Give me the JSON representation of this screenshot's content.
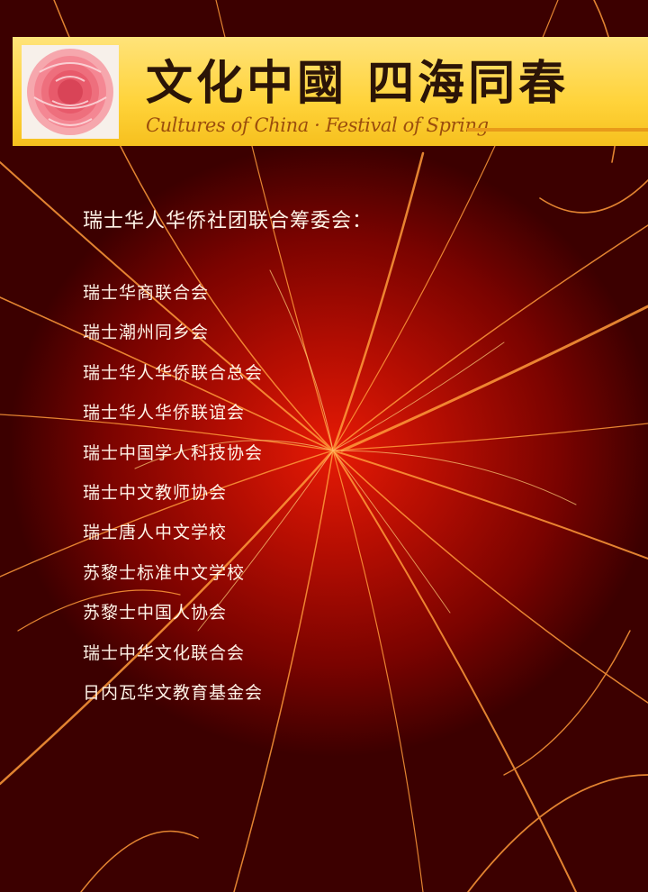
{
  "banner": {
    "title_cn": "文化中國 四海同春",
    "title_en": "Cultures of China · Festival of Spring",
    "logo_icon": "peony-flower-icon"
  },
  "heading": "瑞士华人华侨社团联合筹委会：",
  "members": [
    "瑞士华商联合会",
    "瑞士潮州同乡会",
    "瑞士华人华侨联合总会",
    "瑞士华人华侨联谊会",
    "瑞士中国学人科技协会",
    "瑞士中文教师协会",
    "瑞士唐人中文学校",
    "苏黎士标准中文学校",
    "苏黎士中国人协会",
    "瑞士中华文化联合会",
    "日内瓦华文教育基金会"
  ],
  "colors": {
    "background": "#b20d02",
    "banner": "#ffd33a",
    "title": "#2b1407",
    "subtitle": "#9b4e0d",
    "text": "#fff4e8"
  }
}
